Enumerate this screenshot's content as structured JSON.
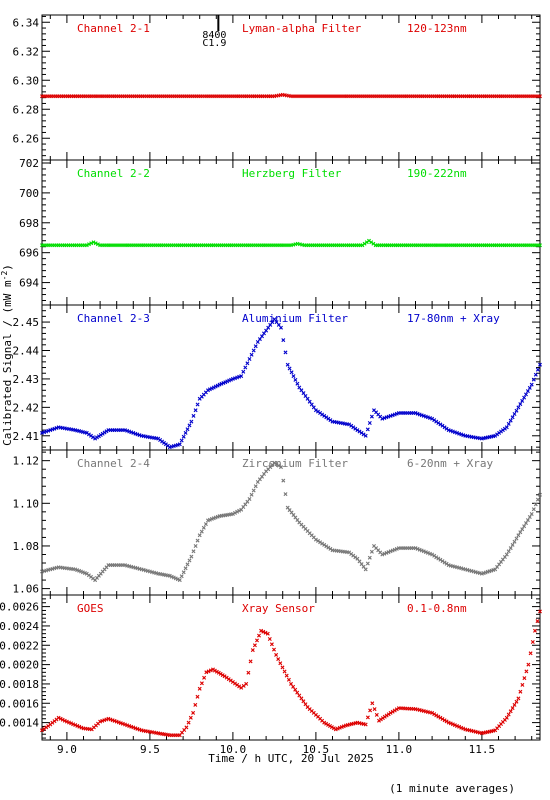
{
  "figure": {
    "ylabel": "Calibrated Signal / (mW m",
    "ylabel_sup": "-2",
    "ylabel_end": ")",
    "xlabel": "Time / h UTC, 20 Jul 2025",
    "footnote": "(1 minute averages)",
    "x_ticks": [
      "9.0",
      "9.5",
      "10.0",
      "10.5",
      "11.0",
      "11.5"
    ],
    "xlim": [
      8.85,
      11.85
    ],
    "marker": {
      "x": 9.84,
      "label_top": "8400",
      "label_bottom": "C1.9"
    }
  },
  "chart_data": [
    {
      "type": "scatter",
      "channel": "Channel 2-1",
      "filter": "Lyman-alpha Filter",
      "band": "120-123nm",
      "color": "#dd0000",
      "ylim": [
        6.245,
        6.345
      ],
      "y_ticks": [
        "6.26",
        "6.28",
        "6.30",
        "6.32",
        "6.34"
      ],
      "y_tick_values": [
        6.26,
        6.28,
        6.3,
        6.32,
        6.34
      ],
      "points": [
        [
          8.85,
          6.289
        ],
        [
          9.3,
          6.289
        ],
        [
          10.0,
          6.289
        ],
        [
          10.25,
          6.289
        ],
        [
          10.3,
          6.29
        ],
        [
          10.35,
          6.289
        ],
        [
          11.0,
          6.289
        ],
        [
          11.85,
          6.289
        ]
      ]
    },
    {
      "type": "scatter",
      "channel": "Channel 2-2",
      "filter": "Herzberg Filter",
      "band": "190-222nm",
      "color": "#00dd00",
      "ylim": [
        692.5,
        702.2
      ],
      "y_ticks": [
        "694",
        "696",
        "698",
        "700",
        "702"
      ],
      "y_tick_values": [
        694,
        696,
        698,
        700,
        702
      ],
      "points": [
        [
          8.85,
          696.5
        ],
        [
          9.12,
          696.5
        ],
        [
          9.16,
          696.7
        ],
        [
          9.2,
          696.5
        ],
        [
          10.35,
          696.5
        ],
        [
          10.39,
          696.6
        ],
        [
          10.43,
          696.5
        ],
        [
          10.78,
          696.5
        ],
        [
          10.82,
          696.8
        ],
        [
          10.86,
          696.5
        ],
        [
          11.85,
          696.5
        ]
      ]
    },
    {
      "type": "scatter",
      "channel": "Channel 2-3",
      "filter": "Aluminium Filter",
      "band": "17-80nm + Xray",
      "color": "#0000cc",
      "ylim": [
        2.405,
        2.456
      ],
      "y_ticks": [
        "2.41",
        "2.42",
        "2.43",
        "2.44",
        "2.45"
      ],
      "y_tick_values": [
        2.41,
        2.42,
        2.43,
        2.44,
        2.45
      ],
      "points": [
        [
          8.85,
          2.411
        ],
        [
          8.95,
          2.413
        ],
        [
          9.05,
          2.412
        ],
        [
          9.12,
          2.411
        ],
        [
          9.17,
          2.409
        ],
        [
          9.25,
          2.412
        ],
        [
          9.35,
          2.412
        ],
        [
          9.45,
          2.41
        ],
        [
          9.55,
          2.409
        ],
        [
          9.62,
          2.406
        ],
        [
          9.68,
          2.407
        ],
        [
          9.75,
          2.415
        ],
        [
          9.8,
          2.423
        ],
        [
          9.85,
          2.426
        ],
        [
          9.92,
          2.428
        ],
        [
          10.0,
          2.43
        ],
        [
          10.05,
          2.431
        ],
        [
          10.1,
          2.437
        ],
        [
          10.15,
          2.443
        ],
        [
          10.2,
          2.447
        ],
        [
          10.25,
          2.451
        ],
        [
          10.29,
          2.448
        ],
        [
          10.33,
          2.435
        ],
        [
          10.4,
          2.427
        ],
        [
          10.5,
          2.419
        ],
        [
          10.6,
          2.415
        ],
        [
          10.7,
          2.414
        ],
        [
          10.75,
          2.412
        ],
        [
          10.8,
          2.41
        ],
        [
          10.85,
          2.419
        ],
        [
          10.9,
          2.416
        ],
        [
          11.0,
          2.418
        ],
        [
          11.1,
          2.418
        ],
        [
          11.2,
          2.416
        ],
        [
          11.3,
          2.412
        ],
        [
          11.4,
          2.41
        ],
        [
          11.5,
          2.409
        ],
        [
          11.58,
          2.41
        ],
        [
          11.65,
          2.413
        ],
        [
          11.72,
          2.42
        ],
        [
          11.8,
          2.428
        ],
        [
          11.85,
          2.435
        ]
      ]
    },
    {
      "type": "scatter",
      "channel": "Channel 2-4",
      "filter": "Zirconium Filter",
      "band": "6-20nm + Xray",
      "color": "#777777",
      "ylim": [
        1.057,
        1.125
      ],
      "y_ticks": [
        "1.06",
        "1.08",
        "1.10",
        "1.12"
      ],
      "y_tick_values": [
        1.06,
        1.08,
        1.1,
        1.12
      ],
      "points": [
        [
          8.85,
          1.068
        ],
        [
          8.95,
          1.07
        ],
        [
          9.05,
          1.069
        ],
        [
          9.12,
          1.067
        ],
        [
          9.17,
          1.064
        ],
        [
          9.25,
          1.071
        ],
        [
          9.35,
          1.071
        ],
        [
          9.45,
          1.069
        ],
        [
          9.55,
          1.067
        ],
        [
          9.62,
          1.066
        ],
        [
          9.68,
          1.064
        ],
        [
          9.75,
          1.075
        ],
        [
          9.8,
          1.085
        ],
        [
          9.85,
          1.092
        ],
        [
          9.92,
          1.094
        ],
        [
          10.0,
          1.095
        ],
        [
          10.05,
          1.097
        ],
        [
          10.1,
          1.102
        ],
        [
          10.15,
          1.11
        ],
        [
          10.2,
          1.115
        ],
        [
          10.25,
          1.119
        ],
        [
          10.29,
          1.117
        ],
        [
          10.33,
          1.098
        ],
        [
          10.4,
          1.091
        ],
        [
          10.5,
          1.083
        ],
        [
          10.6,
          1.078
        ],
        [
          10.7,
          1.077
        ],
        [
          10.75,
          1.074
        ],
        [
          10.8,
          1.069
        ],
        [
          10.85,
          1.08
        ],
        [
          10.9,
          1.076
        ],
        [
          11.0,
          1.079
        ],
        [
          11.1,
          1.079
        ],
        [
          11.2,
          1.076
        ],
        [
          11.3,
          1.071
        ],
        [
          11.4,
          1.069
        ],
        [
          11.5,
          1.067
        ],
        [
          11.58,
          1.069
        ],
        [
          11.65,
          1.076
        ],
        [
          11.72,
          1.085
        ],
        [
          11.8,
          1.095
        ],
        [
          11.85,
          1.104
        ]
      ]
    },
    {
      "type": "scatter",
      "channel": "GOES",
      "filter": "Xray Sensor",
      "band": "0.1-0.8nm",
      "color": "#dd0000",
      "ylim": [
        0.00122,
        0.00272
      ],
      "y_ticks": [
        "0.0014",
        "0.0016",
        "0.0018",
        "0.0020",
        "0.0022",
        "0.0024",
        "0.0026"
      ],
      "y_tick_values": [
        0.0014,
        0.0016,
        0.0018,
        0.002,
        0.0022,
        0.0024,
        0.0026
      ],
      "points": [
        [
          8.85,
          0.00132
        ],
        [
          8.9,
          0.00138
        ],
        [
          8.95,
          0.00145
        ],
        [
          9.0,
          0.00141
        ],
        [
          9.1,
          0.00134
        ],
        [
          9.15,
          0.00133
        ],
        [
          9.2,
          0.00141
        ],
        [
          9.25,
          0.00144
        ],
        [
          9.35,
          0.00138
        ],
        [
          9.45,
          0.00132
        ],
        [
          9.55,
          0.00129
        ],
        [
          9.62,
          0.00127
        ],
        [
          9.68,
          0.00127
        ],
        [
          9.72,
          0.00135
        ],
        [
          9.76,
          0.0015
        ],
        [
          9.8,
          0.00175
        ],
        [
          9.84,
          0.00192
        ],
        [
          9.88,
          0.00195
        ],
        [
          9.95,
          0.00188
        ],
        [
          10.0,
          0.00182
        ],
        [
          10.05,
          0.00176
        ],
        [
          10.08,
          0.0018
        ],
        [
          10.12,
          0.00215
        ],
        [
          10.17,
          0.00235
        ],
        [
          10.21,
          0.00232
        ],
        [
          10.26,
          0.0021
        ],
        [
          10.35,
          0.0018
        ],
        [
          10.45,
          0.00156
        ],
        [
          10.55,
          0.0014
        ],
        [
          10.62,
          0.00133
        ],
        [
          10.68,
          0.00137
        ],
        [
          10.75,
          0.0014
        ],
        [
          10.8,
          0.00138
        ],
        [
          10.84,
          0.0016
        ],
        [
          10.88,
          0.00142
        ],
        [
          10.95,
          0.0015
        ],
        [
          11.0,
          0.00155
        ],
        [
          11.1,
          0.00154
        ],
        [
          11.2,
          0.0015
        ],
        [
          11.3,
          0.0014
        ],
        [
          11.4,
          0.00133
        ],
        [
          11.5,
          0.00129
        ],
        [
          11.58,
          0.00132
        ],
        [
          11.65,
          0.00145
        ],
        [
          11.72,
          0.00165
        ],
        [
          11.78,
          0.002
        ],
        [
          11.82,
          0.00235
        ],
        [
          11.85,
          0.00255
        ]
      ]
    }
  ]
}
